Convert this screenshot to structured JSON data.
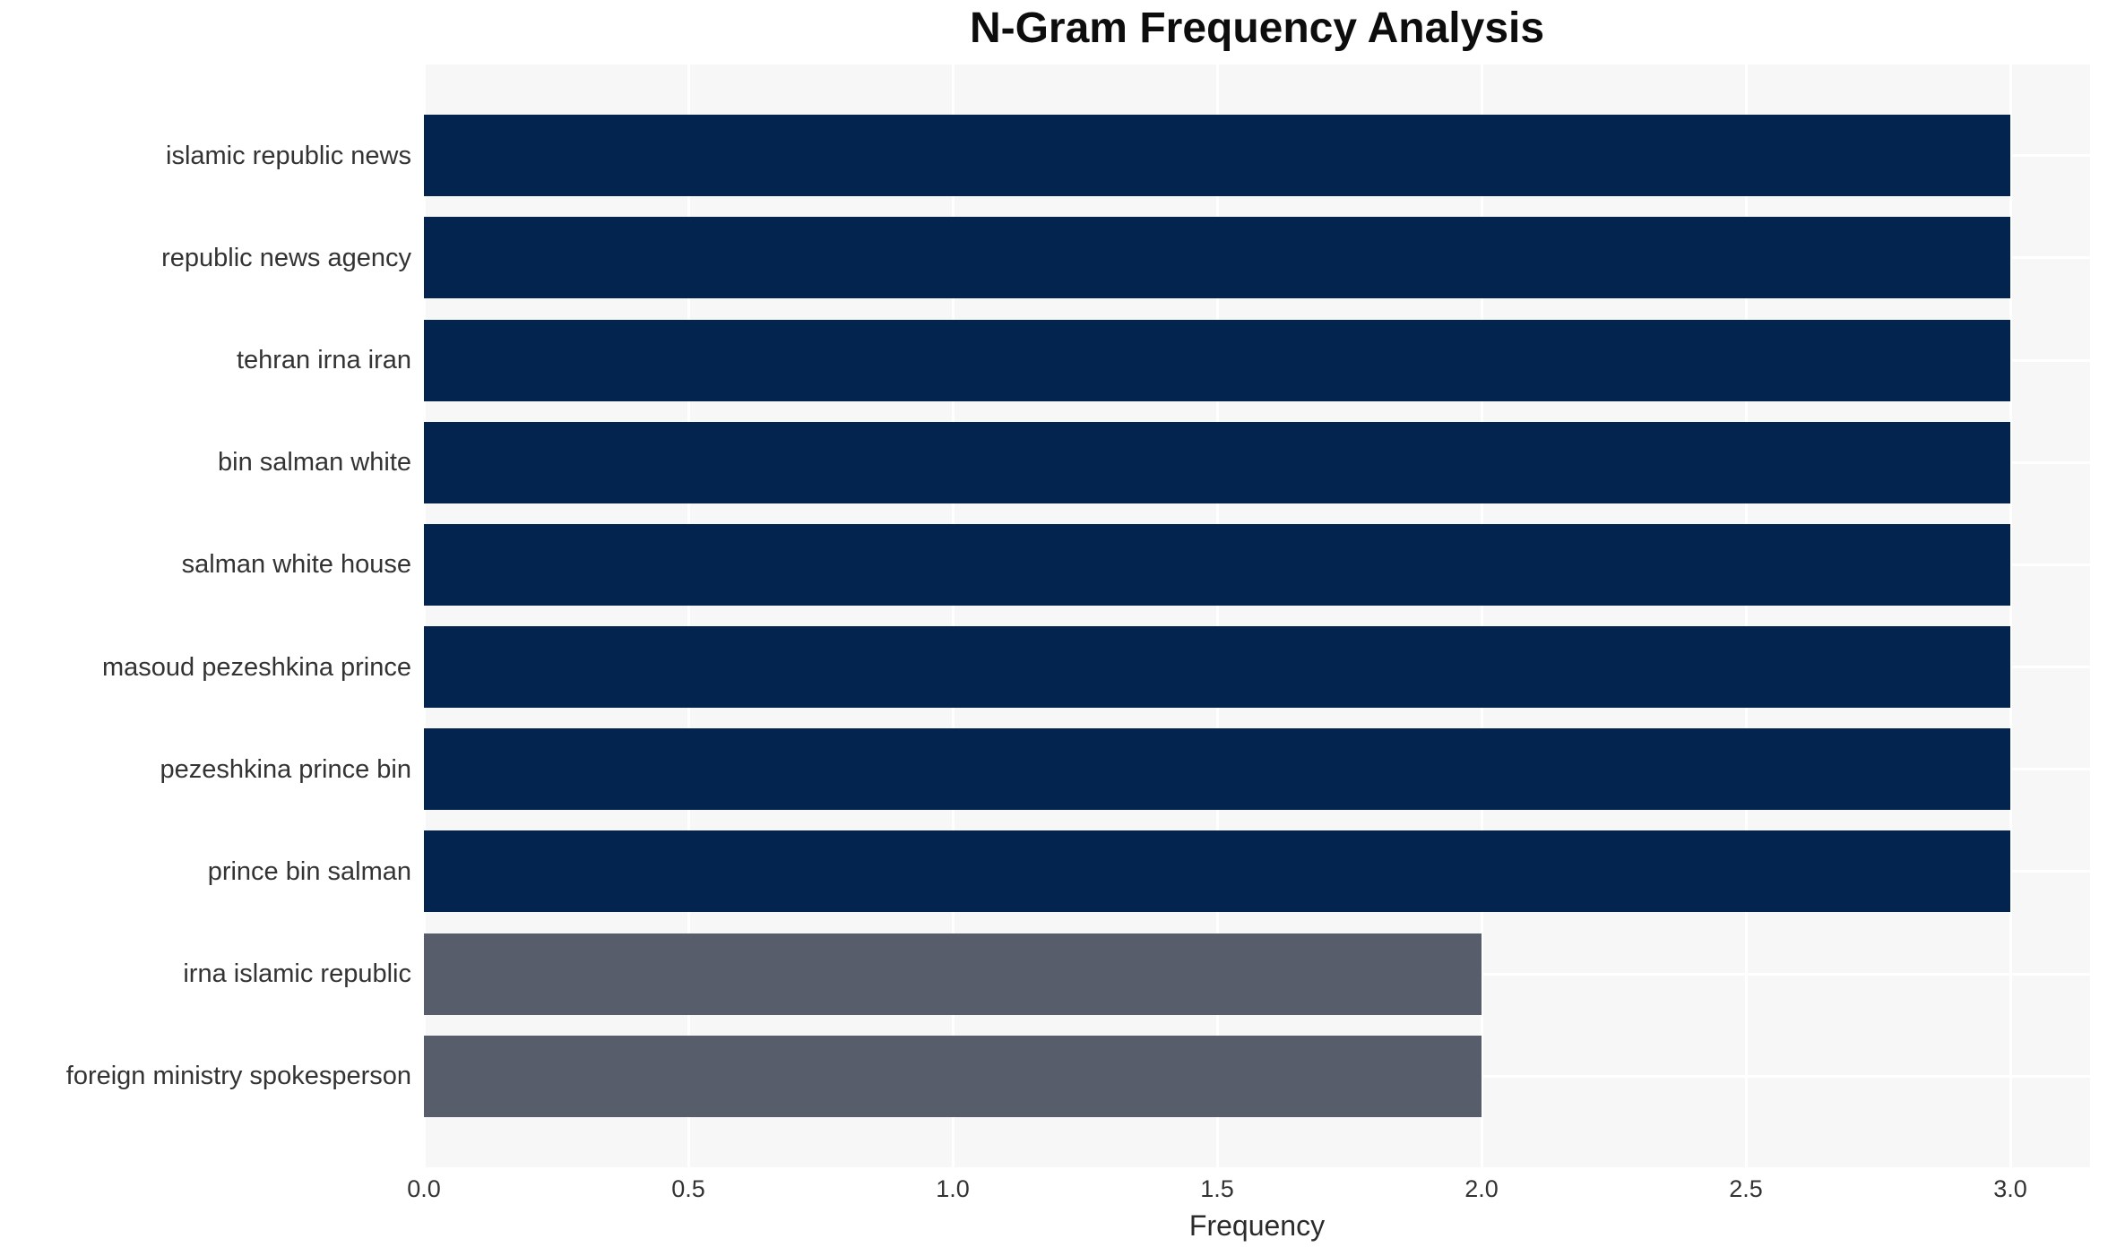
{
  "chart_data": {
    "type": "bar",
    "orientation": "horizontal",
    "title": "N-Gram Frequency Analysis",
    "xlabel": "Frequency",
    "ylabel": "",
    "categories": [
      "islamic republic news",
      "republic news agency",
      "tehran irna iran",
      "bin salman white",
      "salman white house",
      "masoud pezeshkina prince",
      "pezeshkina prince bin",
      "prince bin salman",
      "irna islamic republic",
      "foreign ministry spokesperson"
    ],
    "values": [
      3,
      3,
      3,
      3,
      3,
      3,
      3,
      3,
      2,
      2
    ],
    "bar_colors": [
      "#02244E",
      "#02244E",
      "#02244E",
      "#02244E",
      "#02244E",
      "#02244E",
      "#02244E",
      "#02244E",
      "#575D6A",
      "#575D6A"
    ],
    "xlim": [
      0,
      3.15
    ],
    "xticks": [
      0.0,
      0.5,
      1.0,
      1.5,
      2.0,
      2.5,
      3.0
    ],
    "xtick_labels": [
      "0.0",
      "0.5",
      "1.0",
      "1.5",
      "2.0",
      "2.5",
      "3.0"
    ],
    "grid": true,
    "legend": "none",
    "colors": {
      "plot_background": "#F7F7F8",
      "figure_background": "#FFFFFF",
      "grid_color": "#FFFFFF",
      "high_value_bar": "#02244E",
      "low_value_bar": "#575D6A",
      "text": "#333333"
    }
  }
}
